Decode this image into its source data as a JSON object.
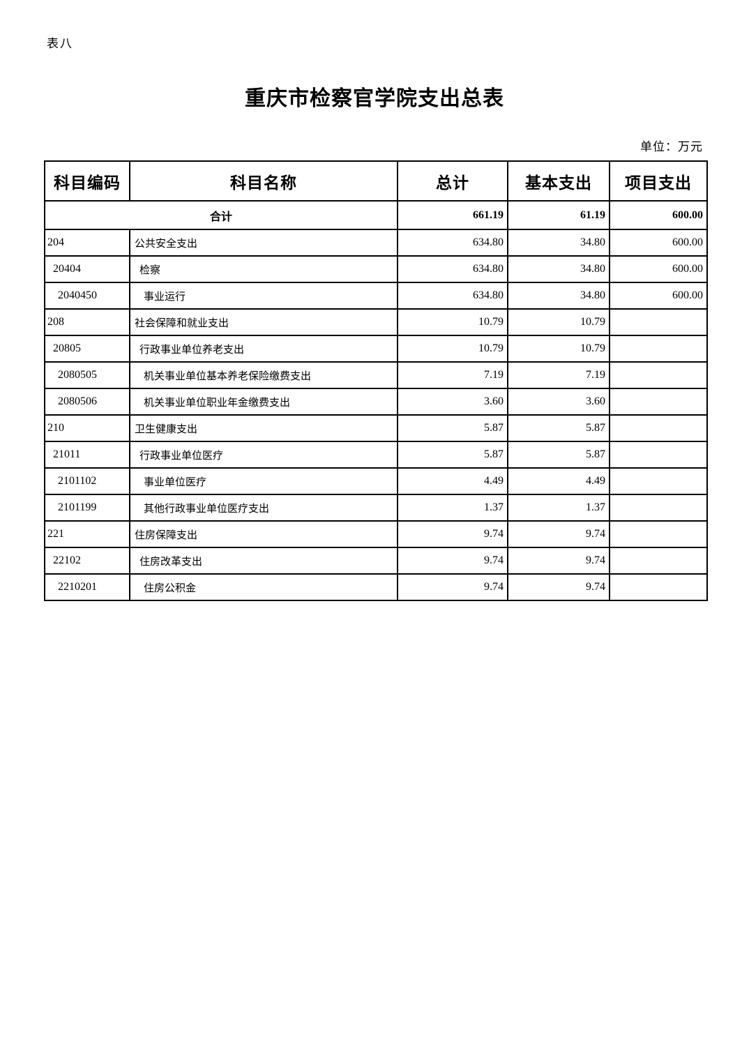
{
  "page": {
    "corner_label": "表八",
    "title": "重庆市检察官学院支出总表",
    "unit_label": "单位：万元",
    "background_color": "#ffffff",
    "text_color": "#000000",
    "border_color": "#000000"
  },
  "table": {
    "headers": [
      "科目编码",
      "科目名称",
      "总计",
      "基本支出",
      "项目支出"
    ],
    "total_row": {
      "label": "合计",
      "total": "661.19",
      "basic": "61.19",
      "project": "600.00"
    },
    "rows": [
      {
        "code": "204",
        "indent": 0,
        "name": "公共安全支出",
        "total": "634.80",
        "basic": "34.80",
        "project": "600.00"
      },
      {
        "code": "20404",
        "indent": 1,
        "name": "检察",
        "total": "634.80",
        "basic": "34.80",
        "project": "600.00"
      },
      {
        "code": "2040450",
        "indent": 2,
        "name": "事业运行",
        "total": "634.80",
        "basic": "34.80",
        "project": "600.00"
      },
      {
        "code": "208",
        "indent": 0,
        "name": "社会保障和就业支出",
        "total": "10.79",
        "basic": "10.79",
        "project": ""
      },
      {
        "code": "20805",
        "indent": 1,
        "name": "行政事业单位养老支出",
        "total": "10.79",
        "basic": "10.79",
        "project": ""
      },
      {
        "code": "2080505",
        "indent": 2,
        "name": "机关事业单位基本养老保险缴费支出",
        "total": "7.19",
        "basic": "7.19",
        "project": ""
      },
      {
        "code": "2080506",
        "indent": 2,
        "name": "机关事业单位职业年金缴费支出",
        "total": "3.60",
        "basic": "3.60",
        "project": ""
      },
      {
        "code": "210",
        "indent": 0,
        "name": "卫生健康支出",
        "total": "5.87",
        "basic": "5.87",
        "project": ""
      },
      {
        "code": "21011",
        "indent": 1,
        "name": "行政事业单位医疗",
        "total": "5.87",
        "basic": "5.87",
        "project": ""
      },
      {
        "code": "2101102",
        "indent": 2,
        "name": "事业单位医疗",
        "total": "4.49",
        "basic": "4.49",
        "project": ""
      },
      {
        "code": "2101199",
        "indent": 2,
        "name": "其他行政事业单位医疗支出",
        "total": "1.37",
        "basic": "1.37",
        "project": ""
      },
      {
        "code": "221",
        "indent": 0,
        "name": "住房保障支出",
        "total": "9.74",
        "basic": "9.74",
        "project": ""
      },
      {
        "code": "22102",
        "indent": 1,
        "name": "住房改革支出",
        "total": "9.74",
        "basic": "9.74",
        "project": ""
      },
      {
        "code": "2210201",
        "indent": 2,
        "name": "住房公积金",
        "total": "9.74",
        "basic": "9.74",
        "project": ""
      }
    ]
  }
}
